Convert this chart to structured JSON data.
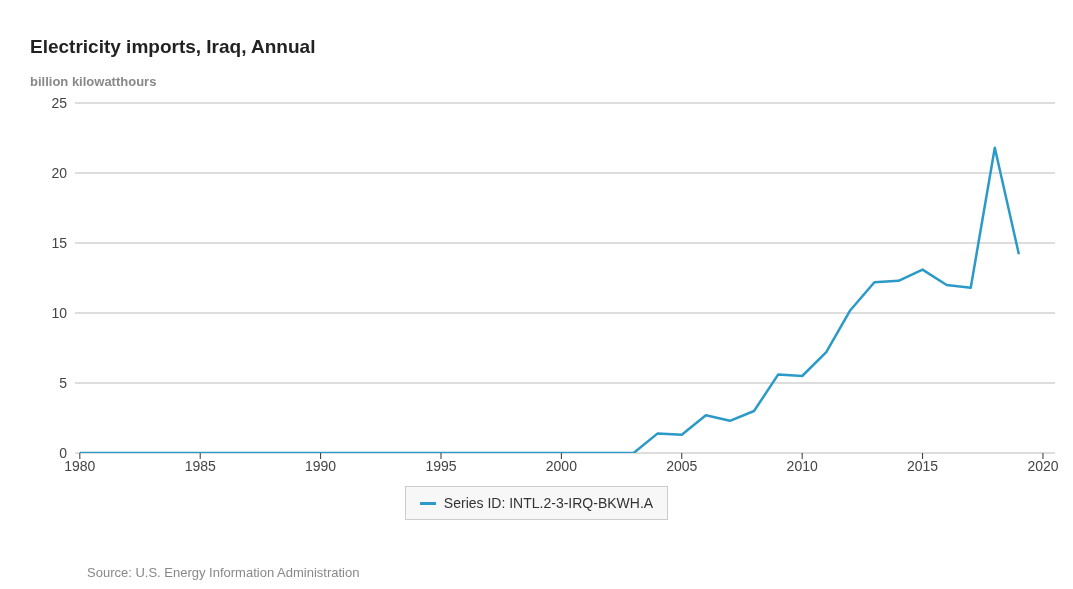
{
  "chart_data": {
    "type": "line",
    "title": "Electricity imports, Iraq, Annual",
    "ylabel": "billion kilowatthours",
    "x": [
      1980,
      1981,
      1982,
      1983,
      1984,
      1985,
      1986,
      1987,
      1988,
      1989,
      1990,
      1991,
      1992,
      1993,
      1994,
      1995,
      1996,
      1997,
      1998,
      1999,
      2000,
      2001,
      2002,
      2003,
      2004,
      2005,
      2006,
      2007,
      2008,
      2009,
      2010,
      2011,
      2012,
      2013,
      2014,
      2015,
      2016,
      2017,
      2018,
      2019
    ],
    "series": [
      {
        "name": "Series ID: INTL.2-3-IRQ-BKWH.A",
        "color": "#2b9ac9",
        "values": [
          0,
          0,
          0,
          0,
          0,
          0,
          0,
          0,
          0,
          0,
          0,
          0,
          0,
          0,
          0,
          0,
          0,
          0,
          0,
          0,
          0,
          0,
          0,
          0,
          1.4,
          1.3,
          2.7,
          2.3,
          3.0,
          5.6,
          5.5,
          7.2,
          10.2,
          12.2,
          12.3,
          13.1,
          12.0,
          11.8,
          21.8,
          14.2
        ]
      }
    ],
    "xlim": [
      1979.8,
      2020.5
    ],
    "xticks": [
      1980,
      1985,
      1990,
      1995,
      2000,
      2005,
      2010,
      2015,
      2020
    ],
    "ylim": [
      0,
      25
    ],
    "yticks": [
      0,
      5,
      10,
      15,
      20,
      25
    ],
    "grid": "y",
    "legend": "bottom",
    "marker": "none",
    "line_style": "solid",
    "annotations": [
      "Source: U.S. Energy Information Administration"
    ]
  }
}
